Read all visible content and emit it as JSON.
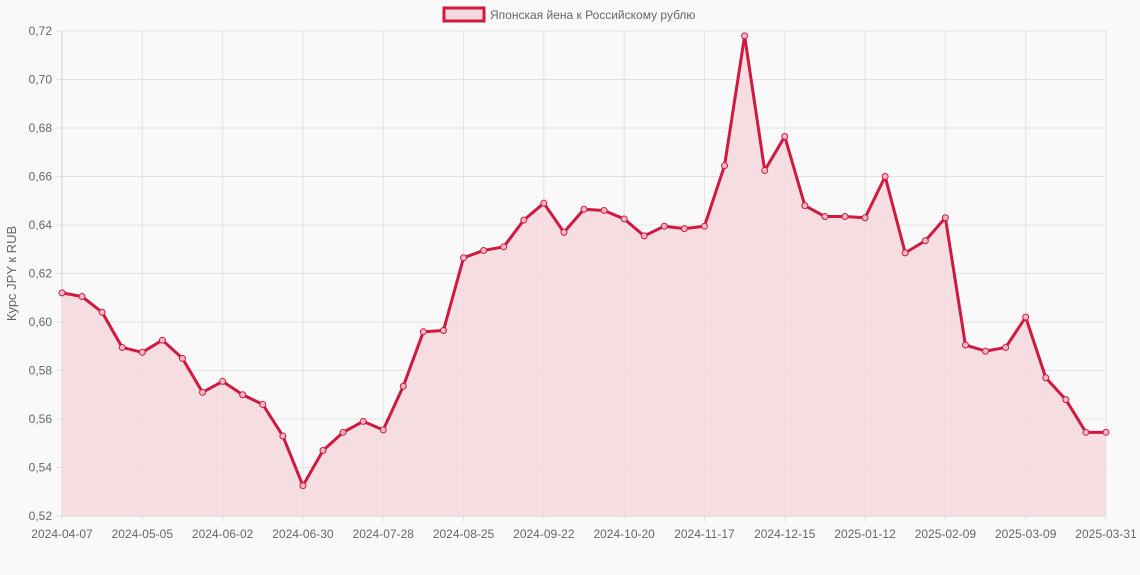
{
  "chart_data": {
    "type": "area",
    "legend": {
      "position": "top-center",
      "label": "Японская йена к Российскому рублю"
    },
    "ylabel": "Курс JPY к RUB",
    "xlabel": "",
    "ylim": [
      0.52,
      0.72
    ],
    "y_ticks": [
      "0,52",
      "0,54",
      "0,56",
      "0,58",
      "0,60",
      "0,62",
      "0,64",
      "0,66",
      "0,68",
      "0,70",
      "0,72"
    ],
    "x_ticks": [
      "2024-04-07",
      "2024-05-05",
      "2024-06-02",
      "2024-06-30",
      "2024-07-28",
      "2024-08-25",
      "2024-09-22",
      "2024-10-20",
      "2024-11-17",
      "2024-12-15",
      "2025-01-12",
      "2025-02-09",
      "2025-03-09",
      "2025-03-31"
    ],
    "grid": true,
    "series": [
      {
        "name": "Японская йена к Российскому рублю",
        "color": "#d0193f",
        "fill": "#f5d9df",
        "values": [
          0.612,
          0.6105,
          0.604,
          0.5895,
          0.5875,
          0.5925,
          0.585,
          0.571,
          0.5755,
          0.57,
          0.566,
          0.553,
          0.5325,
          0.547,
          0.5545,
          0.559,
          0.5555,
          0.5735,
          0.596,
          0.5965,
          0.6265,
          0.6295,
          0.631,
          0.642,
          0.649,
          0.637,
          0.6465,
          0.646,
          0.6425,
          0.6355,
          0.6395,
          0.6385,
          0.6395,
          0.6645,
          0.718,
          0.6625,
          0.6765,
          0.648,
          0.6435,
          0.6435,
          0.643,
          0.66,
          0.6285,
          0.6335,
          0.643,
          0.5905,
          0.588,
          0.5895,
          0.602,
          0.577,
          0.568,
          0.5545,
          0.5545
        ]
      }
    ]
  }
}
